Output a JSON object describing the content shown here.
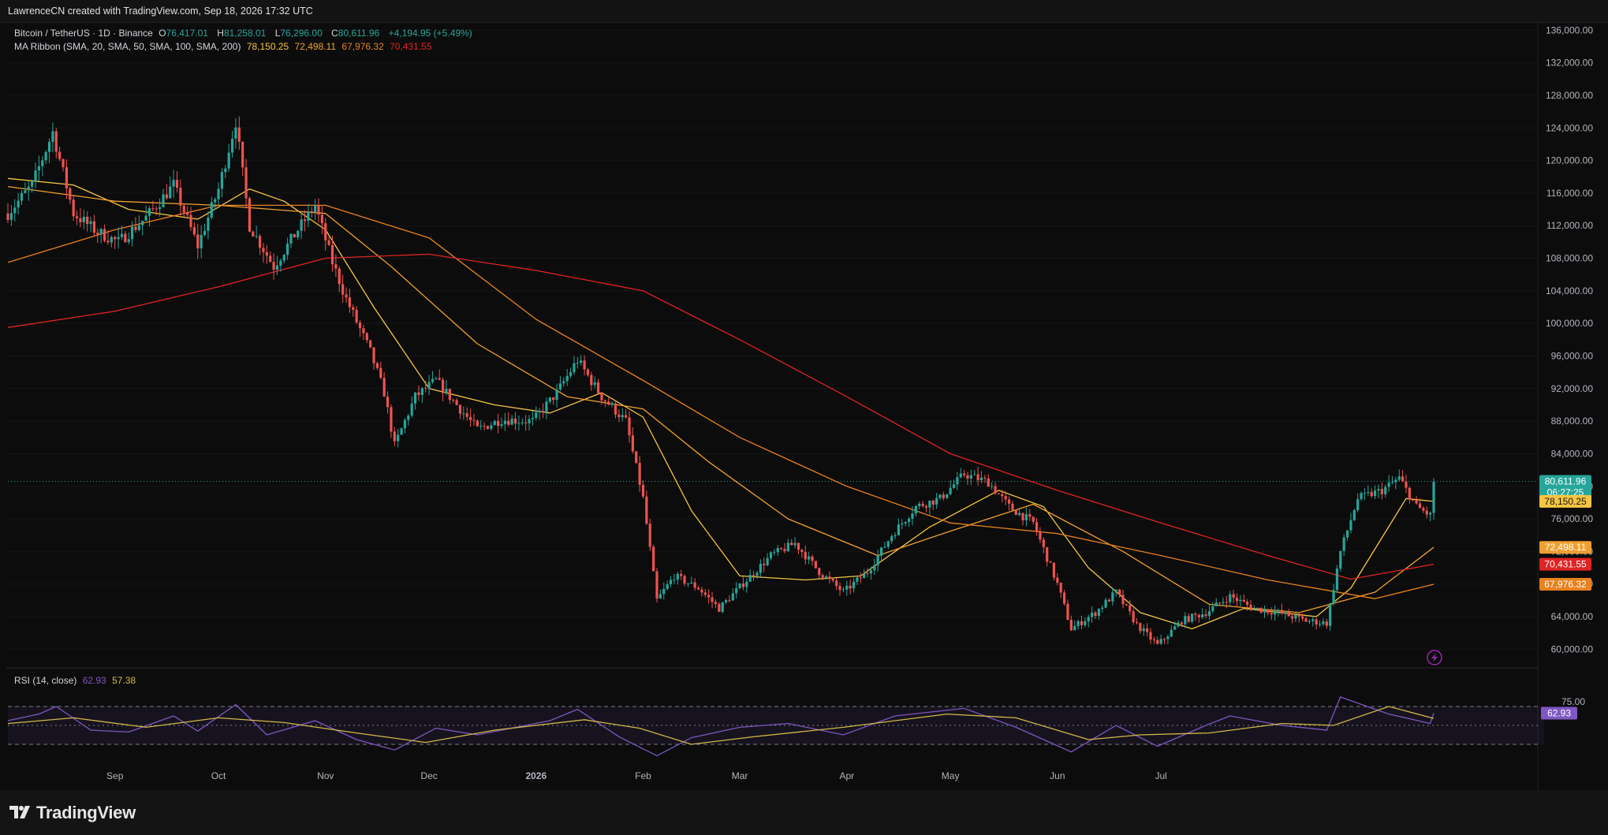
{
  "header": {
    "attribution": "LawrenceCN created with TradingView.com, Sep 18, 2026 17:32 UTC"
  },
  "legend": {
    "symbol": "Bitcoin / TetherUS · 1D · Binance",
    "o_label": "O",
    "o_value": "76,417.01",
    "h_label": "H",
    "h_value": "81,258.01",
    "l_label": "L",
    "l_value": "76,296.00",
    "c_label": "C",
    "c_value": "80,611.96",
    "change": "+4,194.95 (+5.49%)",
    "ma_title": "MA Ribbon (SMA, 20, SMA, 50, SMA, 100, SMA, 200)",
    "ma_values": [
      "78,150.25",
      "72,498.11",
      "67,976.32",
      "70,431.55"
    ],
    "rsi_title": "RSI (14, close)",
    "rsi_value": "62.93",
    "rsi_ma_value": "57.38"
  },
  "brand": {
    "name": "TradingView",
    "logo_icon": "tradingview-logo-icon"
  },
  "colors": {
    "background": "#0c0c0c",
    "up": "#26a69a",
    "down": "#ef5350",
    "sma20": "#f5c542",
    "sma50": "#f0a030",
    "sma100": "#e8821e",
    "sma200": "#e02424",
    "rsi": "#7e57c2",
    "rsi_ma": "#d4b84a",
    "axis_text": "#b2b5be"
  },
  "chart_data": {
    "type": "candlestick",
    "price_axis": {
      "ticks": [
        136000,
        132000,
        128000,
        124000,
        120000,
        116000,
        112000,
        108000,
        104000,
        100000,
        96000,
        92000,
        88000,
        84000,
        80000,
        76000,
        72000,
        68000,
        64000,
        60000
      ],
      "tick_labels": [
        "136,000.00",
        "132,000.00",
        "128,000.00",
        "124,000.00",
        "120,000.00",
        "116,000.00",
        "112,000.00",
        "108,000.00",
        "104,000.00",
        "100,000.00",
        "96,000.00",
        "92,000.00",
        "88,000.00",
        "84,000.00",
        "80,000.00",
        "76,000.00",
        "72,000.00",
        "68,000.00",
        "64,000.00",
        "60,000.00"
      ],
      "range": [
        58000,
        137000
      ]
    },
    "time_axis": {
      "labels": [
        "Sep",
        "Oct",
        "Nov",
        "Dec",
        "2026",
        "Feb",
        "Mar",
        "Apr",
        "May",
        "Jun",
        "Jul"
      ],
      "label_dates": [
        "2025-09-01",
        "2025-10-01",
        "2025-11-01",
        "2025-12-01",
        "2026-01-01",
        "2026-02-01",
        "2026-03-01",
        "2026-04-01",
        "2026-05-01",
        "2026-06-01",
        "2026-07-01"
      ],
      "start_date": "2025-08-01",
      "end_date": "2026-09-18"
    },
    "price_labels": [
      {
        "value": "80,611.96",
        "sub": "06:27:25",
        "price": 80612,
        "color": "#26a69a"
      },
      {
        "value": "78,150.25",
        "price": 78150,
        "color": "#f5c542"
      },
      {
        "value": "72,498.11",
        "price": 72498,
        "color": "#f0a030"
      },
      {
        "value": "70,431.55",
        "price": 70432,
        "color": "#e02424"
      },
      {
        "value": "67,976.32",
        "price": 67976,
        "color": "#e8821e"
      }
    ],
    "close_path": [
      [
        "2025-08-01",
        113500
      ],
      [
        "2025-08-08",
        117000
      ],
      [
        "2025-08-14",
        123500
      ],
      [
        "2025-08-20",
        113500
      ],
      [
        "2025-08-27",
        111200
      ],
      [
        "2025-09-02",
        110000
      ],
      [
        "2025-09-10",
        113000
      ],
      [
        "2025-09-18",
        117000
      ],
      [
        "2025-09-25",
        109500
      ],
      [
        "2025-10-01",
        116500
      ],
      [
        "2025-10-06",
        124800
      ],
      [
        "2025-10-10",
        112000
      ],
      [
        "2025-10-17",
        107000
      ],
      [
        "2025-10-24",
        111500
      ],
      [
        "2025-10-29",
        114500
      ],
      [
        "2025-11-03",
        107500
      ],
      [
        "2025-11-07",
        103000
      ],
      [
        "2025-11-14",
        96500
      ],
      [
        "2025-11-18",
        91500
      ],
      [
        "2025-11-21",
        85000
      ],
      [
        "2025-11-27",
        91000
      ],
      [
        "2025-12-03",
        93000
      ],
      [
        "2025-12-08",
        90500
      ],
      [
        "2025-12-15",
        87000
      ],
      [
        "2025-12-22",
        88200
      ],
      [
        "2025-12-31",
        88000
      ],
      [
        "2026-01-07",
        91500
      ],
      [
        "2026-01-13",
        95500
      ],
      [
        "2026-01-20",
        91000
      ],
      [
        "2026-01-27",
        88000
      ],
      [
        "2026-02-01",
        78500
      ],
      [
        "2026-02-05",
        66000
      ],
      [
        "2026-02-10",
        69000
      ],
      [
        "2026-02-17",
        67500
      ],
      [
        "2026-02-23",
        65000
      ],
      [
        "2026-03-03",
        68500
      ],
      [
        "2026-03-10",
        71500
      ],
      [
        "2026-03-17",
        73000
      ],
      [
        "2026-03-24",
        69500
      ],
      [
        "2026-03-31",
        67000
      ],
      [
        "2026-04-07",
        69500
      ],
      [
        "2026-04-14",
        74000
      ],
      [
        "2026-04-21",
        77500
      ],
      [
        "2026-04-28",
        78500
      ],
      [
        "2026-05-05",
        81500
      ],
      [
        "2026-05-12",
        80500
      ],
      [
        "2026-05-18",
        77500
      ],
      [
        "2026-05-25",
        75500
      ],
      [
        "2026-06-01",
        68000
      ],
      [
        "2026-06-05",
        62500
      ],
      [
        "2026-06-12",
        64500
      ],
      [
        "2026-06-18",
        67000
      ],
      [
        "2026-06-24",
        63000
      ],
      [
        "2026-06-30",
        60500
      ],
      [
        "2026-07-07",
        63500
      ],
      [
        "2026-07-14",
        64500
      ],
      [
        "2026-07-21",
        66500
      ],
      [
        "2026-07-28",
        65000
      ],
      [
        "2026-08-04",
        64500
      ],
      [
        "2026-08-12",
        63500
      ],
      [
        "2026-08-18",
        63200
      ],
      [
        "2026-08-22",
        72000
      ],
      [
        "2026-08-27",
        78500
      ],
      [
        "2026-09-03",
        79500
      ],
      [
        "2026-09-08",
        81000
      ],
      [
        "2026-09-13",
        77500
      ],
      [
        "2026-09-17",
        76400
      ],
      [
        "2026-09-18",
        80612
      ]
    ],
    "series": [
      {
        "name": "SMA 20",
        "points": [
          [
            "2025-08-01",
            117800
          ],
          [
            "2025-08-20",
            117000
          ],
          [
            "2025-09-05",
            114000
          ],
          [
            "2025-09-25",
            112800
          ],
          [
            "2025-10-10",
            116500
          ],
          [
            "2025-10-20",
            115000
          ],
          [
            "2025-11-01",
            111500
          ],
          [
            "2025-11-15",
            102000
          ],
          [
            "2025-12-01",
            92000
          ],
          [
            "2025-12-20",
            90000
          ],
          [
            "2026-01-05",
            89000
          ],
          [
            "2026-01-20",
            91500
          ],
          [
            "2026-02-01",
            88500
          ],
          [
            "2026-02-15",
            77000
          ],
          [
            "2026-03-01",
            69000
          ],
          [
            "2026-03-20",
            68500
          ],
          [
            "2026-04-05",
            69000
          ],
          [
            "2026-04-25",
            75000
          ],
          [
            "2026-05-15",
            79500
          ],
          [
            "2026-05-28",
            77500
          ],
          [
            "2026-06-10",
            70000
          ],
          [
            "2026-06-25",
            64500
          ],
          [
            "2026-07-10",
            62500
          ],
          [
            "2026-07-25",
            65000
          ],
          [
            "2026-08-15",
            64000
          ],
          [
            "2026-08-25",
            67500
          ],
          [
            "2026-09-10",
            78500
          ],
          [
            "2026-09-18",
            78150
          ]
        ]
      },
      {
        "name": "SMA 50",
        "points": [
          [
            "2025-08-01",
            116800
          ],
          [
            "2025-09-01",
            115000
          ],
          [
            "2025-10-01",
            114500
          ],
          [
            "2025-11-01",
            113500
          ],
          [
            "2025-11-20",
            107000
          ],
          [
            "2025-12-15",
            97500
          ],
          [
            "2026-01-10",
            91000
          ],
          [
            "2026-02-01",
            89500
          ],
          [
            "2026-02-20",
            83000
          ],
          [
            "2026-03-15",
            76000
          ],
          [
            "2026-04-10",
            71500
          ],
          [
            "2026-05-01",
            74500
          ],
          [
            "2026-05-25",
            77800
          ],
          [
            "2026-06-20",
            72000
          ],
          [
            "2026-07-15",
            65500
          ],
          [
            "2026-08-10",
            64500
          ],
          [
            "2026-09-01",
            67000
          ],
          [
            "2026-09-18",
            72498
          ]
        ]
      },
      {
        "name": "SMA 100",
        "points": [
          [
            "2025-08-01",
            107500
          ],
          [
            "2025-09-01",
            111500
          ],
          [
            "2025-10-01",
            114500
          ],
          [
            "2025-11-01",
            114500
          ],
          [
            "2025-12-01",
            110500
          ],
          [
            "2026-01-01",
            100500
          ],
          [
            "2026-02-01",
            93000
          ],
          [
            "2026-03-01",
            86000
          ],
          [
            "2026-04-01",
            80000
          ],
          [
            "2026-05-01",
            75500
          ],
          [
            "2026-06-01",
            74200
          ],
          [
            "2026-07-01",
            71500
          ],
          [
            "2026-08-01",
            68500
          ],
          [
            "2026-09-01",
            66200
          ],
          [
            "2026-09-18",
            67976
          ]
        ]
      },
      {
        "name": "SMA 200",
        "points": [
          [
            "2025-08-01",
            99500
          ],
          [
            "2025-09-01",
            101500
          ],
          [
            "2025-10-01",
            104500
          ],
          [
            "2025-11-01",
            108000
          ],
          [
            "2025-12-01",
            108500
          ],
          [
            "2026-01-01",
            106500
          ],
          [
            "2026-02-01",
            104000
          ],
          [
            "2026-03-01",
            98000
          ],
          [
            "2026-04-01",
            91000
          ],
          [
            "2026-05-01",
            84000
          ],
          [
            "2026-06-01",
            79500
          ],
          [
            "2026-07-01",
            75500
          ],
          [
            "2026-08-01",
            71500
          ],
          [
            "2026-08-25",
            68600
          ],
          [
            "2026-09-18",
            70432
          ]
        ]
      }
    ],
    "rsi": {
      "levels": {
        "upper": 70,
        "middle": 50,
        "lower": 30
      },
      "tick_labels": [
        "75.00"
      ],
      "label_value": "62.93",
      "points": [
        [
          "2025-08-01",
          55
        ],
        [
          "2025-08-10",
          62
        ],
        [
          "2025-08-15",
          70
        ],
        [
          "2025-08-25",
          45
        ],
        [
          "2025-09-05",
          43
        ],
        [
          "2025-09-18",
          60
        ],
        [
          "2025-09-25",
          44
        ],
        [
          "2025-10-06",
          72
        ],
        [
          "2025-10-15",
          40
        ],
        [
          "2025-10-29",
          55
        ],
        [
          "2025-11-10",
          35
        ],
        [
          "2025-11-21",
          24
        ],
        [
          "2025-12-03",
          47
        ],
        [
          "2025-12-15",
          40
        ],
        [
          "2026-01-05",
          55
        ],
        [
          "2026-01-13",
          67
        ],
        [
          "2026-01-25",
          38
        ],
        [
          "2026-02-05",
          18
        ],
        [
          "2026-02-15",
          37
        ],
        [
          "2026-03-01",
          48
        ],
        [
          "2026-03-15",
          52
        ],
        [
          "2026-03-31",
          40
        ],
        [
          "2026-04-15",
          60
        ],
        [
          "2026-05-05",
          68
        ],
        [
          "2026-05-20",
          48
        ],
        [
          "2026-06-05",
          22
        ],
        [
          "2026-06-18",
          50
        ],
        [
          "2026-06-30",
          28
        ],
        [
          "2026-07-14",
          50
        ],
        [
          "2026-07-21",
          60
        ],
        [
          "2026-08-05",
          50
        ],
        [
          "2026-08-18",
          45
        ],
        [
          "2026-08-22",
          80
        ],
        [
          "2026-09-05",
          62
        ],
        [
          "2026-09-17",
          52
        ],
        [
          "2026-09-18",
          62.93
        ]
      ],
      "ma_points": [
        [
          "2025-08-01",
          52
        ],
        [
          "2025-08-20",
          58
        ],
        [
          "2025-09-10",
          48
        ],
        [
          "2025-10-01",
          58
        ],
        [
          "2025-10-20",
          53
        ],
        [
          "2025-11-10",
          42
        ],
        [
          "2025-11-30",
          32
        ],
        [
          "2025-12-20",
          45
        ],
        [
          "2026-01-15",
          56
        ],
        [
          "2026-01-31",
          47
        ],
        [
          "2026-02-15",
          30
        ],
        [
          "2026-03-05",
          38
        ],
        [
          "2026-03-31",
          48
        ],
        [
          "2026-04-30",
          62
        ],
        [
          "2026-05-20",
          58
        ],
        [
          "2026-06-10",
          35
        ],
        [
          "2026-06-25",
          40
        ],
        [
          "2026-07-15",
          42
        ],
        [
          "2026-08-05",
          52
        ],
        [
          "2026-08-20",
          50
        ],
        [
          "2026-09-05",
          70
        ],
        [
          "2026-09-18",
          57.38
        ]
      ]
    }
  }
}
